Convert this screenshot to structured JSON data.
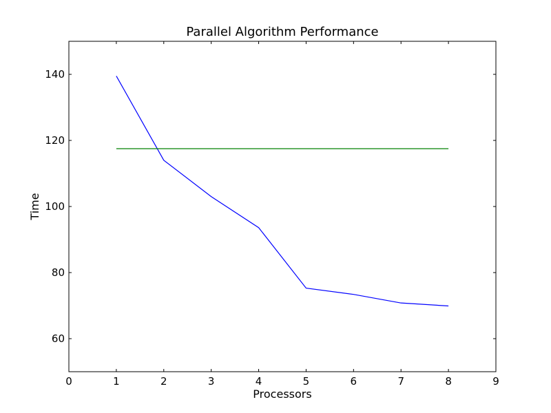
{
  "chart_data": {
    "type": "line",
    "title": "Parallel Algorithm Performance",
    "xlabel": "Processors",
    "ylabel": "Time",
    "xlim": [
      0,
      9
    ],
    "ylim": [
      50,
      150
    ],
    "xticks": [
      0,
      1,
      2,
      3,
      4,
      5,
      6,
      7,
      8,
      9
    ],
    "yticks": [
      60,
      80,
      100,
      120,
      140
    ],
    "grid": false,
    "legend": "none",
    "series": [
      {
        "color": "#0000ff",
        "x": [
          1,
          2,
          3,
          4,
          5,
          6,
          7,
          8
        ],
        "y": [
          139.5,
          114,
          103,
          93.6,
          75.3,
          73.4,
          70.8,
          69.9
        ]
      },
      {
        "color": "#008000",
        "x": [
          1,
          8
        ],
        "y": [
          117.5,
          117.5
        ]
      }
    ]
  }
}
